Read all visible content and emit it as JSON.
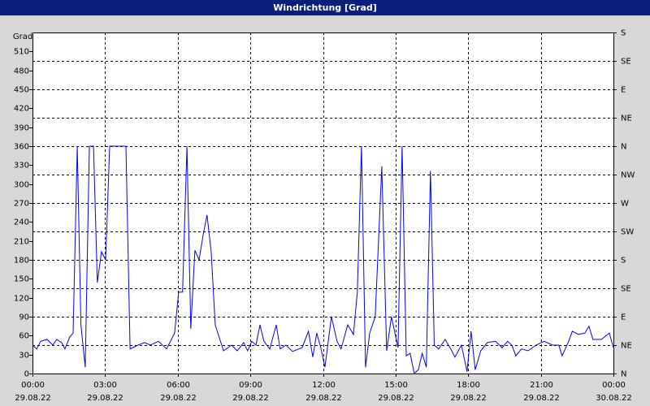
{
  "chart_data": {
    "type": "line",
    "title": "Windrichtung [Grad]",
    "y_label": "Grad",
    "color": "#0000ff",
    "grid": true,
    "xlim": [
      0,
      24
    ],
    "xticks": [
      {
        "value": 0,
        "label": "00:00"
      },
      {
        "value": 3,
        "label": "03:00"
      },
      {
        "value": 6,
        "label": "06:00"
      },
      {
        "value": 9,
        "label": "09:00"
      },
      {
        "value": 12,
        "label": "12:00"
      },
      {
        "value": 15,
        "label": "15:00"
      },
      {
        "value": 18,
        "label": "18:00"
      },
      {
        "value": 21,
        "label": "21:00"
      },
      {
        "value": 24,
        "label": "00:00"
      }
    ],
    "xtick_dates": [
      "29.08.22",
      "29.08.22",
      "29.08.22",
      "29.08.22",
      "29.08.22",
      "29.08.22",
      "29.08.22",
      "29.08.22",
      "30.08.22"
    ],
    "ylim": [
      0,
      540
    ],
    "yticks": [
      0,
      30,
      60,
      90,
      120,
      150,
      180,
      210,
      240,
      270,
      300,
      330,
      360,
      390,
      420,
      450,
      480,
      510
    ],
    "y2lim": [
      0,
      540
    ],
    "y2ticks": [
      {
        "value": 0,
        "label": "N"
      },
      {
        "value": 45,
        "label": "NE"
      },
      {
        "value": 90,
        "label": "E"
      },
      {
        "value": 135,
        "label": "SE"
      },
      {
        "value": 180,
        "label": "S"
      },
      {
        "value": 225,
        "label": "SW"
      },
      {
        "value": 270,
        "label": "W"
      },
      {
        "value": 315,
        "label": "NW"
      },
      {
        "value": 360,
        "label": "N"
      },
      {
        "value": 405,
        "label": "NE"
      },
      {
        "value": 450,
        "label": "E"
      },
      {
        "value": 495,
        "label": "SE"
      },
      {
        "value": 540,
        "label": "S"
      }
    ],
    "x": [
      0,
      0.17,
      0.34,
      0.6,
      0.84,
      1.0,
      1.2,
      1.34,
      1.54,
      1.68,
      1.85,
      2.0,
      2.18,
      2.35,
      2.52,
      2.68,
      2.85,
      3.02,
      3.19,
      3.86,
      4.03,
      4.36,
      4.63,
      4.87,
      5.2,
      5.54,
      5.87,
      6.04,
      6.2,
      6.38,
      6.54,
      6.71,
      6.88,
      7.05,
      7.21,
      7.38,
      7.55,
      7.89,
      8.22,
      8.46,
      8.72,
      8.89,
      9.06,
      9.23,
      9.4,
      9.56,
      9.8,
      10.07,
      10.23,
      10.47,
      10.74,
      11.14,
      11.4,
      11.58,
      11.74,
      11.91,
      12.08,
      12.35,
      12.58,
      12.75,
      13.02,
      13.26,
      13.42,
      13.59,
      13.76,
      13.93,
      14.16,
      14.43,
      14.63,
      14.83,
      15.1,
      15.27,
      15.44,
      15.6,
      15.77,
      15.94,
      16.1,
      16.27,
      16.44,
      16.6,
      16.78,
      17.05,
      17.28,
      17.45,
      17.72,
      17.95,
      18.12,
      18.29,
      18.52,
      18.79,
      19.13,
      19.4,
      19.63,
      19.8,
      19.97,
      20.2,
      20.47,
      20.8,
      21.14,
      21.48,
      21.74,
      21.88,
      22.15,
      22.3,
      22.55,
      22.82,
      22.99,
      23.15,
      23.5,
      23.83,
      24
    ],
    "values": [
      45,
      39,
      51,
      54,
      45,
      54,
      49,
      39,
      58,
      64,
      360,
      77,
      10,
      360,
      360,
      144,
      193,
      180,
      360,
      360,
      39,
      45,
      49,
      45,
      51,
      39,
      64,
      129,
      129,
      360,
      71,
      195,
      180,
      219,
      251,
      193,
      77,
      36,
      45,
      36,
      49,
      36,
      51,
      45,
      77,
      51,
      39,
      77,
      39,
      45,
      35,
      41,
      67,
      26,
      64,
      41,
      10,
      90,
      51,
      39,
      77,
      62,
      129,
      360,
      10,
      64,
      90,
      328,
      36,
      90,
      41,
      360,
      28,
      32,
      0,
      6,
      32,
      10,
      321,
      45,
      39,
      54,
      39,
      26,
      45,
      3,
      67,
      6,
      36,
      49,
      51,
      41,
      51,
      45,
      28,
      39,
      36,
      45,
      51,
      45,
      45,
      28,
      51,
      67,
      62,
      64,
      75,
      54,
      54,
      64,
      41
    ]
  }
}
